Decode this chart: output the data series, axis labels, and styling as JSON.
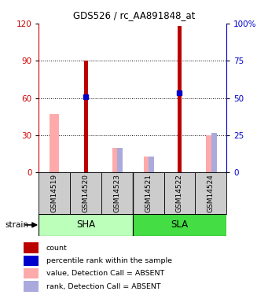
{
  "title": "GDS526 / rc_AA891848_at",
  "samples": [
    "GSM14519",
    "GSM14520",
    "GSM14523",
    "GSM14521",
    "GSM14522",
    "GSM14524"
  ],
  "left_ylim": [
    0,
    120
  ],
  "right_ylim": [
    0,
    100
  ],
  "left_yticks": [
    0,
    30,
    60,
    90,
    120
  ],
  "right_yticks": [
    0,
    25,
    50,
    75,
    100
  ],
  "right_ytick_labels": [
    "0",
    "25",
    "50",
    "75",
    "100%"
  ],
  "red_bars": [
    0,
    90,
    0,
    0,
    118,
    0
  ],
  "pink_bars": [
    47,
    0,
    20,
    13,
    0,
    30
  ],
  "blue_squares": [
    null,
    61,
    null,
    null,
    64,
    null
  ],
  "blue_light_bars": [
    null,
    null,
    20,
    13,
    null,
    32
  ],
  "red_color": "#bb0000",
  "pink_color": "#ffaaaa",
  "blue_color": "#0000cc",
  "blue_light_color": "#aaaadd",
  "group_sha_color": "#bbffbb",
  "group_sla_color": "#44dd44",
  "sample_box_color": "#cccccc",
  "left_label_color": "#cc0000",
  "right_label_color": "#0000cc",
  "legend_colors": [
    "#bb0000",
    "#0000cc",
    "#ffaaaa",
    "#aaaadd"
  ],
  "legend_labels": [
    "count",
    "percentile rank within the sample",
    "value, Detection Call = ABSENT",
    "rank, Detection Call = ABSENT"
  ],
  "strain_label": "strain"
}
